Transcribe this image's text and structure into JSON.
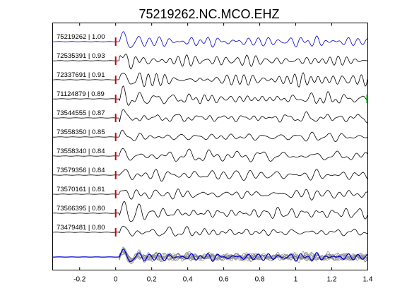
{
  "chart_data": {
    "type": "line",
    "title": "75219262.NC.MCO.EHZ",
    "xlabel": "",
    "ylabel": "",
    "xlim": [
      -0.35,
      1.4
    ],
    "xticks": [
      -0.2,
      0,
      0.2,
      0.4,
      0.6,
      0.8,
      1,
      1.2,
      1.4
    ],
    "xtick_labels": [
      "-0.2",
      "0",
      "0.2",
      "0.4",
      "0.6",
      "0.8",
      "1",
      "1.2",
      "1.4"
    ],
    "grid": false,
    "pick_time": 0,
    "pick_color": "#cc0000",
    "end_marker_color": "#00bb00",
    "reference_color": "#0000cc",
    "trace_color": "#000000",
    "stack_member_color": "#888888",
    "traces": [
      {
        "label": "75219262 | 1.00",
        "seed": 11,
        "reference": true
      },
      {
        "label": "72535391 | 0.93",
        "seed": 23
      },
      {
        "label": "72337691 | 0.91",
        "seed": 37
      },
      {
        "label": "71124879 | 0.89",
        "seed": 41,
        "end_marker": true
      },
      {
        "label": "73544555 | 0.87",
        "seed": 53
      },
      {
        "label": "73558350 | 0.85",
        "seed": 67
      },
      {
        "label": "73558340 | 0.84",
        "seed": 71
      },
      {
        "label": "73579356 | 0.84",
        "seed": 83
      },
      {
        "label": "73570161 | 0.81",
        "seed": 97
      },
      {
        "label": "73566395 | 0.80",
        "seed": 101
      },
      {
        "label": "73479481 | 0.80",
        "seed": 113
      }
    ]
  }
}
